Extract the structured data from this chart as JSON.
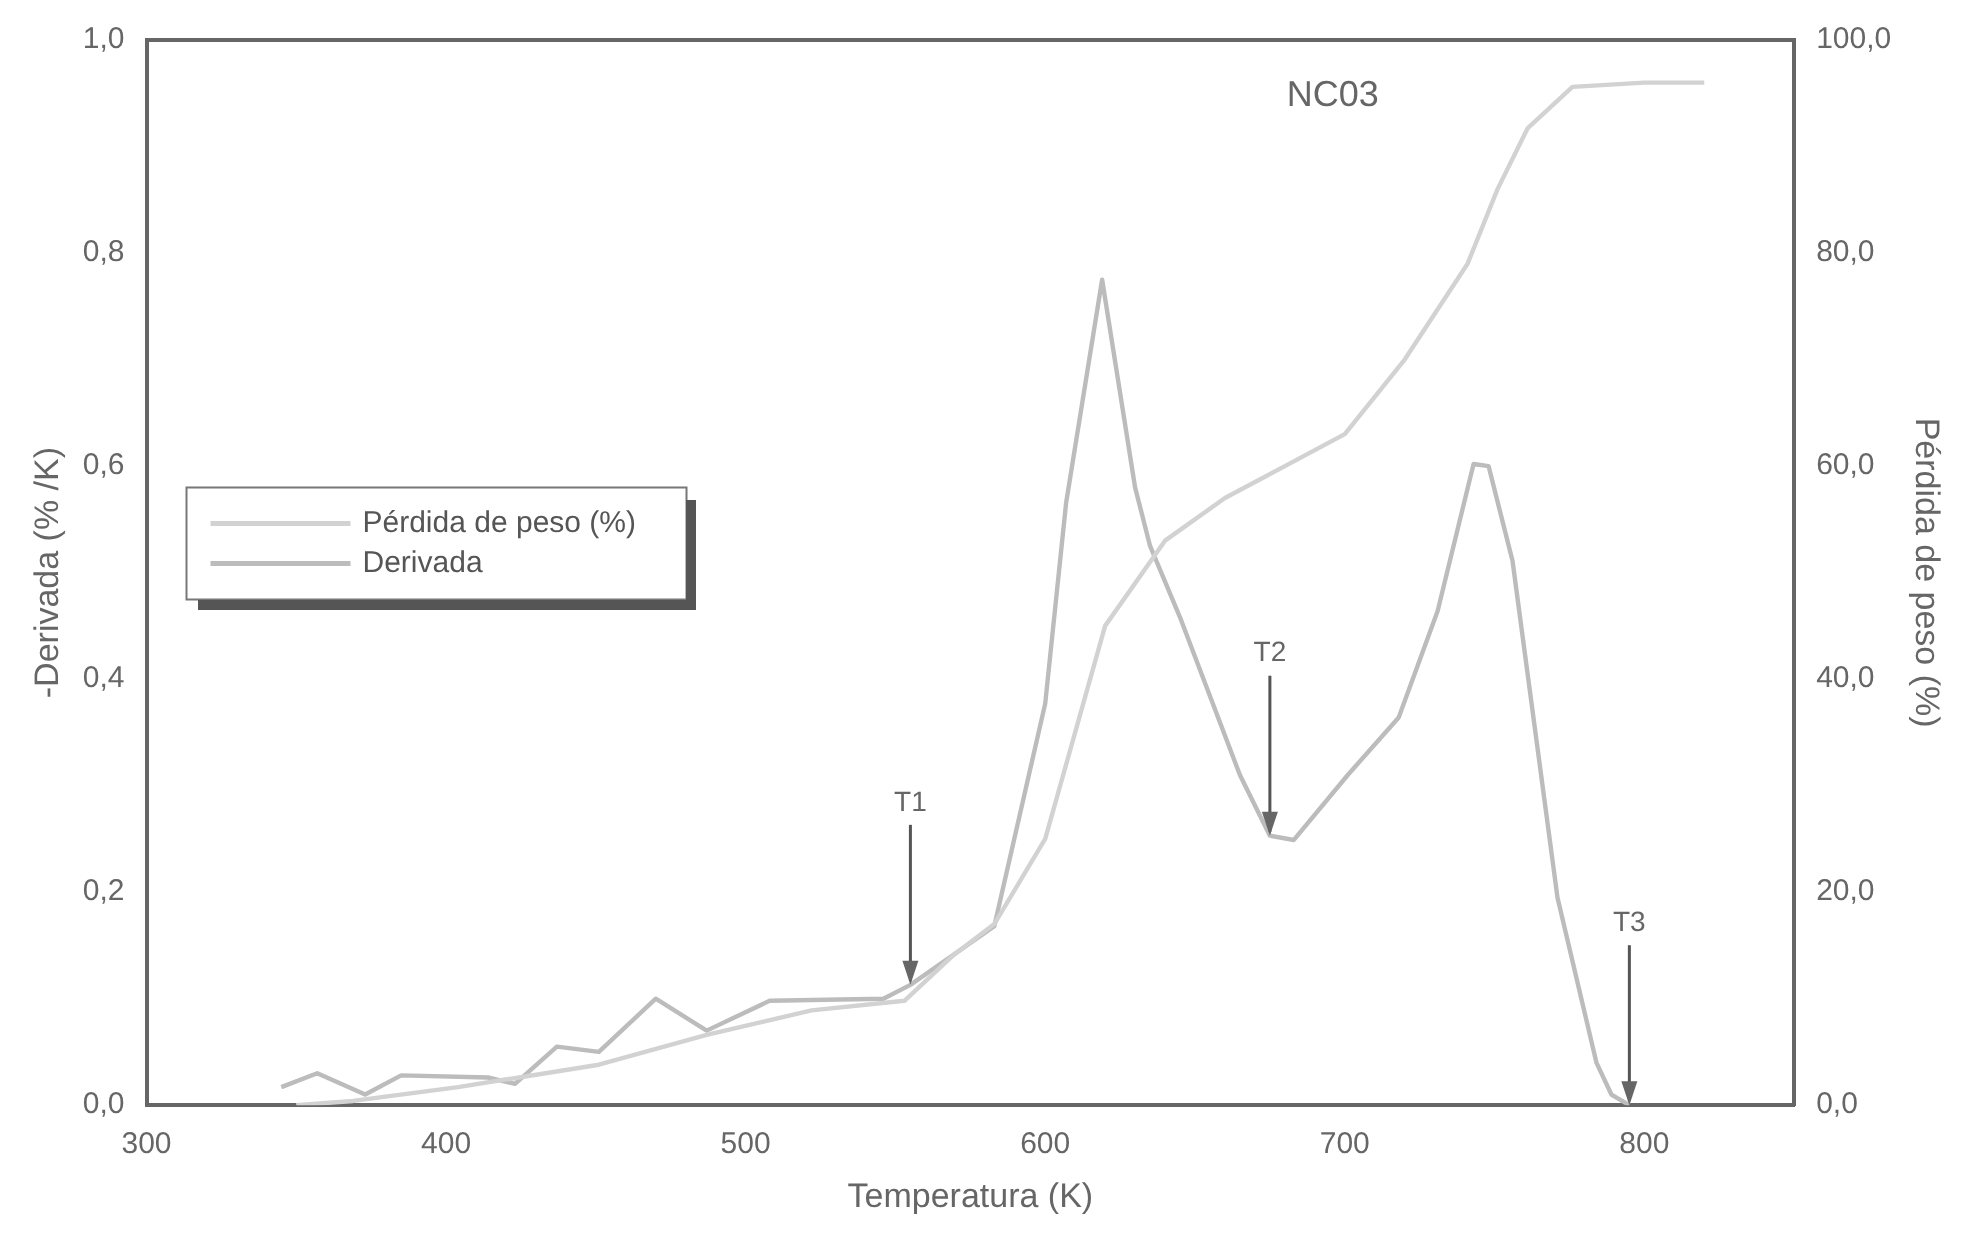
{
  "chart_data": {
    "type": "line",
    "xlabel": "Temperatura (K)",
    "ylabel": "-Derivada (% /K)",
    "y2label": "Pérdida de peso (%)",
    "xlim": [
      300,
      850
    ],
    "xticks": [
      300,
      400,
      500,
      600,
      700,
      800
    ],
    "ylim": [
      0,
      1
    ],
    "yticks": [
      {
        "value": 0,
        "label": "0,0"
      },
      {
        "value": 0.2,
        "label": "0,2"
      },
      {
        "value": 0.4,
        "label": "0,4"
      },
      {
        "value": 0.6,
        "label": "0,6"
      },
      {
        "value": 0.8,
        "label": "0,8"
      },
      {
        "value": 1,
        "label": "1,0"
      }
    ],
    "y2lim": [
      0,
      100
    ],
    "y2ticks": [
      {
        "value": 0,
        "label": "0,0"
      },
      {
        "value": 20,
        "label": "20,0"
      },
      {
        "value": 40,
        "label": "40,0"
      },
      {
        "value": 60,
        "label": "60,0"
      },
      {
        "value": 80,
        "label": "80,0"
      },
      {
        "value": 100,
        "label": "100,0"
      }
    ],
    "grid": false,
    "legend": "left",
    "marker": "none",
    "series": [
      {
        "name": "Pérdida de peso (%)",
        "color": "#d2d2d2",
        "axis": "y2",
        "x": [
          350,
          369,
          404,
          451,
          487,
          522,
          553,
          569,
          583,
          600,
          610,
          620,
          640,
          660,
          680,
          700,
          720,
          741,
          751,
          761,
          776,
          800,
          820
        ],
        "values": [
          0,
          0.4,
          1.7,
          3.8,
          6.6,
          8.9,
          9.8,
          14,
          17,
          25,
          35,
          45,
          53,
          57,
          60,
          63,
          70,
          79,
          86,
          91.7,
          95.6,
          96,
          96
        ]
      },
      {
        "name": "Derivada",
        "color": "#bcbcbc",
        "x": [
          345,
          357,
          373,
          385,
          414,
          423,
          437,
          451,
          470,
          487,
          508,
          546,
          555,
          583,
          600,
          607,
          619,
          630,
          635,
          645,
          665,
          675,
          683,
          701,
          718,
          731,
          743,
          748,
          756,
          771,
          784,
          789,
          795
        ],
        "values": [
          0.017,
          0.03,
          0.01,
          0.028,
          0.026,
          0.02,
          0.055,
          0.05,
          0.1,
          0.07,
          0.098,
          0.1,
          0.113,
          0.168,
          0.377,
          0.566,
          0.775,
          0.58,
          0.525,
          0.458,
          0.31,
          0.253,
          0.249,
          0.31,
          0.364,
          0.464,
          0.602,
          0.6,
          0.511,
          0.195,
          0.04,
          0.01,
          0
        ]
      }
    ],
    "annotations": [
      "NC03",
      {
        "text": "T1",
        "x": 555,
        "y": 0.113
      },
      {
        "text": "T2",
        "x": 675,
        "y": 0.253
      },
      {
        "text": "T3",
        "x": 795,
        "y": 0
      }
    ]
  }
}
